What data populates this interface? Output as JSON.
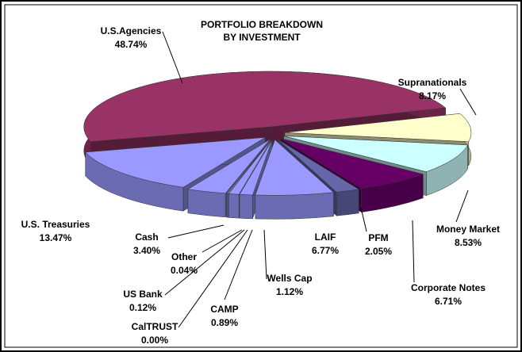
{
  "chart_data": {
    "type": "pie",
    "title": [
      "PORTFOLIO BREAKDOWN",
      "BY INVESTMENT"
    ],
    "categories": [
      "Supranationals",
      "Money Market",
      "Corporate Notes",
      "PFM",
      "LAIF",
      "Wells Cap",
      "CAMP",
      "CalTRUST",
      "US Bank",
      "Other",
      "Cash",
      "U.S. Treasuries",
      "U.S.Agencies"
    ],
    "values": [
      8.17,
      8.53,
      6.71,
      2.05,
      6.77,
      1.12,
      0.89,
      0.0,
      0.12,
      0.04,
      3.4,
      13.47,
      48.74
    ],
    "value_labels": [
      "8.17%",
      "8.53%",
      "6.71%",
      "2.05%",
      "6.77%",
      "1.12%",
      "0.89%",
      "0.00%",
      "0.12%",
      "0.04%",
      "3.40%",
      "13.47%",
      "48.74%"
    ],
    "colors": [
      "#ffffcc",
      "#ccffff",
      "#660066",
      "#6666aa",
      "#9999ff",
      "#9999ff",
      "#9999ff",
      "#9999ff",
      "#9999ff",
      "#9999ff",
      "#9999ff",
      "#9999ff",
      "#993366"
    ]
  }
}
